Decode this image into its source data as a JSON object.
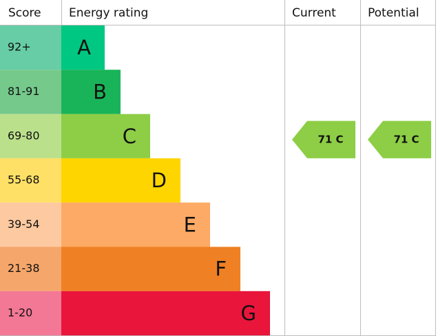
{
  "header": {
    "score": "Score",
    "rating": "Energy rating",
    "current": "Current",
    "potential": "Potential"
  },
  "bands": [
    {
      "score": "92+",
      "letter": "A"
    },
    {
      "score": "81-91",
      "letter": "B"
    },
    {
      "score": "69-80",
      "letter": "C"
    },
    {
      "score": "55-68",
      "letter": "D"
    },
    {
      "score": "39-54",
      "letter": "E"
    },
    {
      "score": "21-38",
      "letter": "F"
    },
    {
      "score": "1-20",
      "letter": "G"
    }
  ],
  "current": {
    "label": "71 C"
  },
  "potential": {
    "label": "71 C"
  }
}
